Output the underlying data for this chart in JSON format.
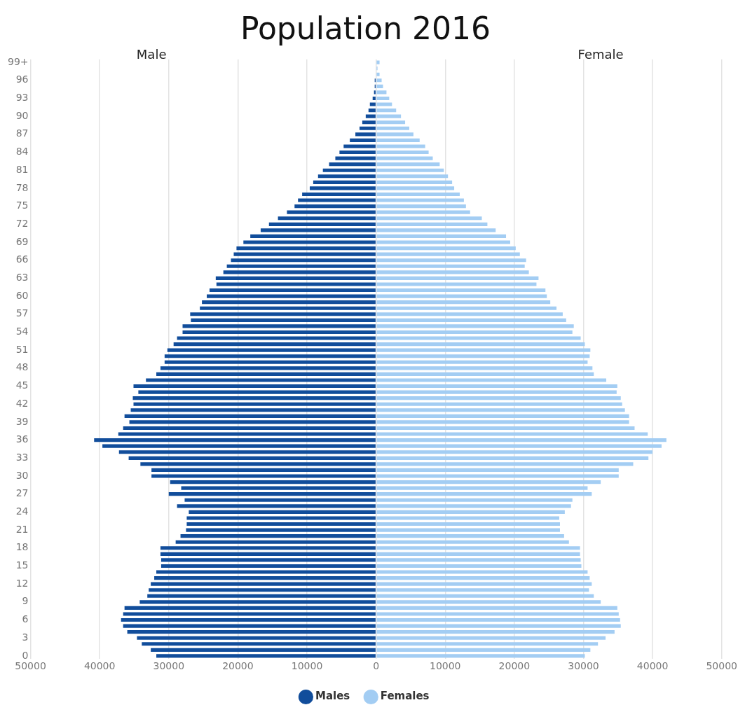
{
  "chart_data": {
    "type": "bar",
    "orientation": "horizontal",
    "stacked": true,
    "title": "Population 2016",
    "annotations": [
      "Male",
      "Female"
    ],
    "categories": [
      "99+",
      null,
      null,
      "96",
      null,
      null,
      "93",
      null,
      null,
      "90",
      null,
      null,
      "87",
      null,
      null,
      "84",
      null,
      null,
      "81",
      null,
      null,
      "78",
      null,
      null,
      "75",
      null,
      null,
      "72",
      null,
      null,
      "69",
      null,
      null,
      "66",
      null,
      null,
      "63",
      null,
      null,
      "60",
      null,
      null,
      "57",
      null,
      null,
      "54",
      null,
      null,
      "51",
      null,
      null,
      "48",
      null,
      null,
      "45",
      null,
      null,
      "42",
      null,
      null,
      "39",
      null,
      null,
      "36",
      null,
      null,
      "33",
      null,
      null,
      "30",
      null,
      null,
      "27",
      null,
      null,
      "24",
      null,
      null,
      "21",
      null,
      null,
      "18",
      null,
      null,
      "15",
      null,
      null,
      "12",
      null,
      null,
      "9",
      null,
      null,
      "6",
      null,
      null,
      "3",
      null,
      null,
      "0"
    ],
    "series": [
      {
        "name": "Males",
        "color": "#114d9b",
        "values": [
          null,
          null,
          null,
          -200,
          -200,
          -300,
          -500,
          -900,
          -1100,
          -1500,
          -2000,
          -2400,
          -3000,
          -3800,
          -4700,
          -5300,
          -5900,
          -6800,
          -7700,
          -8400,
          -9100,
          -9600,
          -10700,
          -11300,
          -11800,
          -12900,
          -14200,
          -15500,
          -16700,
          -18200,
          -19200,
          -20200,
          -20600,
          -21000,
          -21600,
          -22100,
          -23200,
          -23100,
          -24100,
          -24500,
          -25200,
          -25500,
          -26900,
          -26800,
          -28000,
          -28000,
          -28800,
          -29300,
          -30200,
          -30600,
          -30600,
          -31200,
          -31800,
          -33300,
          -35100,
          -34400,
          -35200,
          -35100,
          -35500,
          -36400,
          -35700,
          -36600,
          -37300,
          -40800,
          -39600,
          -37200,
          -35800,
          -34100,
          -32500,
          -32500,
          -29800,
          -28200,
          -30000,
          -27700,
          -28800,
          -27100,
          -27400,
          -27400,
          -27500,
          -28300,
          -29000,
          -31200,
          -31200,
          -31100,
          -31100,
          -31800,
          -32100,
          -32600,
          -32900,
          -33100,
          -34200,
          -36400,
          -36600,
          -36900,
          -36600,
          -36000,
          -34600,
          -33900,
          -32600,
          -31800
        ]
      },
      {
        "name": "Females",
        "color": "#a3cdf3",
        "values": [
          500,
          200,
          500,
          800,
          1000,
          1500,
          1900,
          2300,
          2900,
          3600,
          4200,
          4800,
          5400,
          6300,
          7100,
          7600,
          8200,
          9200,
          9800,
          10400,
          11000,
          11300,
          12100,
          12700,
          13000,
          13600,
          15300,
          16100,
          17300,
          18800,
          19400,
          20200,
          20800,
          21700,
          21500,
          22100,
          23500,
          23200,
          24500,
          24700,
          25200,
          26100,
          27000,
          27500,
          28600,
          28400,
          29600,
          30200,
          31000,
          30900,
          30600,
          31300,
          31500,
          33300,
          34900,
          34800,
          35400,
          35600,
          36000,
          36600,
          36600,
          37400,
          39300,
          42000,
          41300,
          40000,
          39400,
          37200,
          35100,
          35100,
          32500,
          30600,
          31200,
          28400,
          28200,
          27300,
          26500,
          26600,
          26600,
          27200,
          27900,
          29500,
          29500,
          29600,
          29700,
          30600,
          30900,
          31200,
          30800,
          31500,
          32500,
          34900,
          35100,
          35300,
          35400,
          34500,
          33200,
          32100,
          31000,
          30200
        ]
      }
    ],
    "xlim": [
      -50000,
      50000
    ],
    "xticks": [
      {
        "value": -50000,
        "label": "50000"
      },
      {
        "value": -40000,
        "label": "40000"
      },
      {
        "value": -30000,
        "label": "30000"
      },
      {
        "value": -20000,
        "label": "20000"
      },
      {
        "value": -10000,
        "label": "10000"
      },
      0,
      10000,
      20000,
      30000,
      40000,
      50000
    ],
    "grid": "x",
    "legend": "bottom"
  }
}
